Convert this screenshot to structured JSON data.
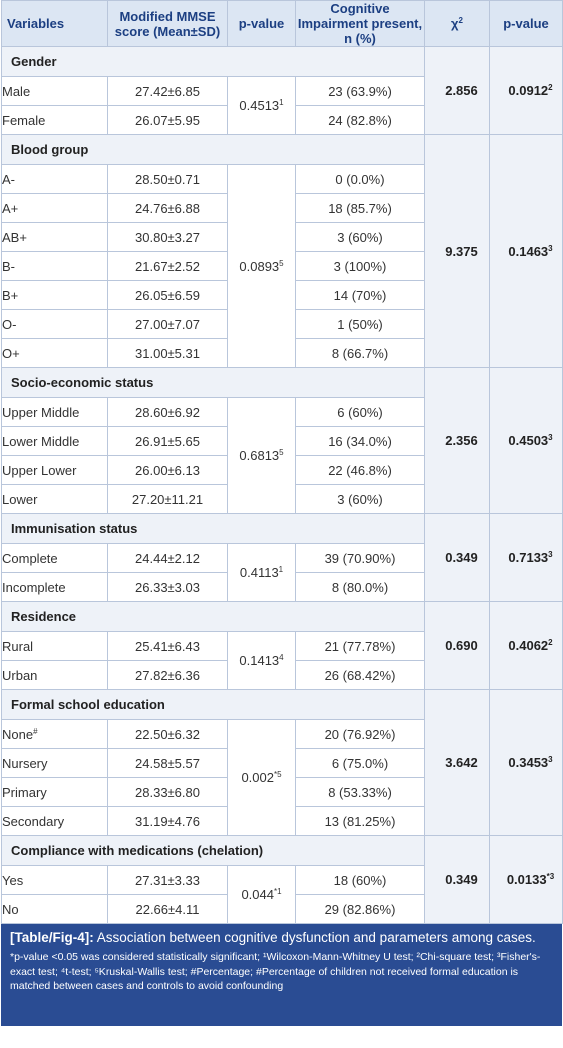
{
  "headers": {
    "variables": "Variables",
    "mmse": "Modified MMSE score (Mean±SD)",
    "pvalue1": "p-value",
    "impairment": "Cognitive Impairment present, n (%)",
    "chi2": "χ",
    "chi2_sup": "2",
    "pvalue2": "p-value"
  },
  "groups": [
    {
      "title": "Gender",
      "p1": "0.4513",
      "p1_sup": "1",
      "chi": "2.856",
      "p2": "0.0912",
      "p2_sup": "2",
      "rows": [
        {
          "label": "Male",
          "mmse": "27.42±6.85",
          "impair": "23 (63.9%)"
        },
        {
          "label": "Female",
          "mmse": "26.07±5.95",
          "impair": "24 (82.8%)"
        }
      ]
    },
    {
      "title": "Blood group",
      "p1": "0.0893",
      "p1_sup": "5",
      "chi": "9.375",
      "p2": "0.1463",
      "p2_sup": "3",
      "rows": [
        {
          "label": "A-",
          "mmse": "28.50±0.71",
          "impair": "0 (0.0%)"
        },
        {
          "label": "A+",
          "mmse": "24.76±6.88",
          "impair": "18 (85.7%)"
        },
        {
          "label": "AB+",
          "mmse": "30.80±3.27",
          "impair": "3 (60%)"
        },
        {
          "label": "B-",
          "mmse": "21.67±2.52",
          "impair": "3 (100%)"
        },
        {
          "label": "B+",
          "mmse": "26.05±6.59",
          "impair": "14 (70%)"
        },
        {
          "label": "O-",
          "mmse": "27.00±7.07",
          "impair": "1 (50%)"
        },
        {
          "label": "O+",
          "mmse": "31.00±5.31",
          "impair": "8 (66.7%)"
        }
      ]
    },
    {
      "title": "Socio-economic status",
      "p1": "0.6813",
      "p1_sup": "5",
      "chi": "2.356",
      "p2": "0.4503",
      "p2_sup": "3",
      "rows": [
        {
          "label": "Upper Middle",
          "mmse": "28.60±6.92",
          "impair": "6 (60%)"
        },
        {
          "label": "Lower Middle",
          "mmse": "26.91±5.65",
          "impair": "16 (34.0%)"
        },
        {
          "label": "Upper Lower",
          "mmse": "26.00±6.13",
          "impair": "22 (46.8%)"
        },
        {
          "label": "Lower",
          "mmse": "27.20±11.21",
          "impair": "3 (60%)"
        }
      ]
    },
    {
      "title": "Immunisation status",
      "p1": "0.4113",
      "p1_sup": "1",
      "chi": "0.349",
      "p2": "0.7133",
      "p2_sup": "3",
      "rows": [
        {
          "label": "Complete",
          "mmse": "24.44±2.12",
          "impair": "39 (70.90%)"
        },
        {
          "label": "Incomplete",
          "mmse": "26.33±3.03",
          "impair": "8 (80.0%)"
        }
      ]
    },
    {
      "title": "Residence",
      "p1": "0.1413",
      "p1_sup": "4",
      "chi": "0.690",
      "p2": "0.4062",
      "p2_sup": "2",
      "rows": [
        {
          "label": "Rural",
          "mmse": "25.41±6.43",
          "impair": "21 (77.78%)"
        },
        {
          "label": "Urban",
          "mmse": "27.82±6.36",
          "impair": "26 (68.42%)"
        }
      ]
    },
    {
      "title": "Formal school education",
      "p1": "0.002",
      "p1_sup": "*5",
      "chi": "3.642",
      "p2": "0.3453",
      "p2_sup": "3",
      "rows": [
        {
          "label": "None",
          "label_sup": "#",
          "mmse": "22.50±6.32",
          "impair": "20 (76.92%)"
        },
        {
          "label": "Nursery",
          "mmse": "24.58±5.57",
          "impair": "6 (75.0%)"
        },
        {
          "label": "Primary",
          "mmse": "28.33±6.80",
          "impair": "8 (53.33%)"
        },
        {
          "label": "Secondary",
          "mmse": "31.19±4.76",
          "impair": "13 (81.25%)"
        }
      ]
    },
    {
      "title": "Compliance with medications (chelation)",
      "p1": "0.044",
      "p1_sup": "*1",
      "chi": "0.349",
      "p2": "0.0133",
      "p2_sup": "*3",
      "rows": [
        {
          "label": "Yes",
          "mmse": "27.31±3.33",
          "impair": "18 (60%)"
        },
        {
          "label": "No",
          "mmse": "22.66±4.11",
          "impair": "29 (82.86%)"
        }
      ]
    }
  ],
  "caption": {
    "label": "[Table/Fig-4]:",
    "text": " Association between cognitive dysfunction and parameters among cases.",
    "note": "*p-value <0.05 was considered statistically significant; ¹Wilcoxon-Mann-Whitney U test; ²Chi-square test; ³Fisher's-exact test; ⁴t-test; ⁵Kruskal-Wallis test; #Percentage; #Percentage of children not received formal education is matched between cases and controls to avoid confounding"
  },
  "colors": {
    "header_bg": "#dce6f3",
    "header_text": "#1c3f82",
    "border": "#b9c6db",
    "category_bg": "#eef2f8",
    "caption_bg": "#2a4c93"
  }
}
